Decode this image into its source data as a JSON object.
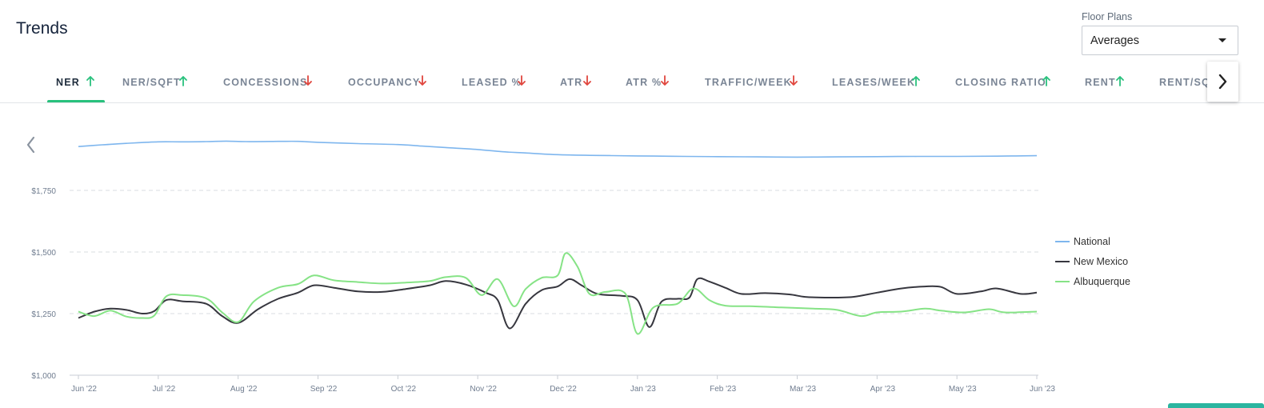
{
  "header": {
    "title": "Trends",
    "floor_plans": {
      "label": "Floor Plans",
      "selected": "Averages"
    }
  },
  "tabs": [
    {
      "label": "NER",
      "trend": "up",
      "active": true
    },
    {
      "label": "NER/SQFT",
      "trend": "up"
    },
    {
      "label": "CONCESSIONS",
      "trend": "down"
    },
    {
      "label": "OCCUPANCY",
      "trend": "down"
    },
    {
      "label": "LEASED %",
      "trend": "down"
    },
    {
      "label": "ATR",
      "trend": "down"
    },
    {
      "label": "ATR %",
      "trend": "down"
    },
    {
      "label": "TRAFFIC/WEEK",
      "trend": "down"
    },
    {
      "label": "LEASES/WEEK",
      "trend": "up"
    },
    {
      "label": "CLOSING RATIO",
      "trend": "up"
    },
    {
      "label": "RENT",
      "trend": "up"
    },
    {
      "label": "RENT/SQFT",
      "trend": "up"
    }
  ],
  "icons": {
    "scroll_left": "chevron-left-icon",
    "scroll_right": "chevron-right-icon",
    "dropdown": "caret-down-icon",
    "up": "arrow-up-icon",
    "down": "arrow-down-icon"
  },
  "colors": {
    "up": "#29c17d",
    "down": "#e0463e",
    "accent": "#29c17d",
    "grid": "#d9dde2",
    "axis_text": "#6f7c8f"
  },
  "chart_data": {
    "type": "line",
    "y_ticks": [
      "$1,000",
      "$1,250",
      "$1,500",
      "$1,750"
    ],
    "y_tick_values": [
      1000,
      1250,
      1500,
      1750
    ],
    "ylim": [
      1000,
      2000
    ],
    "x_ticks": [
      "Jun '22",
      "Jul '22",
      "Aug '22",
      "Sep '22",
      "Oct '22",
      "Nov '22",
      "Dec '22",
      "Jan '23",
      "Feb '23",
      "Mar '23",
      "Apr '23",
      "May '23",
      "Jun '23"
    ],
    "grid": "horizontal dashed",
    "legend_position": "right",
    "series": [
      {
        "name": "National",
        "color": "#7eb6ee",
        "points": [
          [
            0,
            1928
          ],
          [
            0.3,
            1935
          ],
          [
            0.6,
            1941
          ],
          [
            1,
            1947
          ],
          [
            1.3,
            1947
          ],
          [
            1.6,
            1948
          ],
          [
            1.85,
            1950
          ],
          [
            2.1,
            1948
          ],
          [
            2.5,
            1949
          ],
          [
            2.75,
            1949
          ],
          [
            3,
            1945
          ],
          [
            3.5,
            1940
          ],
          [
            4,
            1936
          ],
          [
            4.3,
            1930
          ],
          [
            4.6,
            1924
          ],
          [
            5,
            1916
          ],
          [
            5.3,
            1907
          ],
          [
            5.6,
            1902
          ],
          [
            6,
            1895
          ],
          [
            6.5,
            1892
          ],
          [
            7,
            1890
          ],
          [
            7.3,
            1889
          ],
          [
            7.6,
            1888
          ],
          [
            8,
            1887
          ],
          [
            8.5,
            1886
          ],
          [
            9,
            1885
          ],
          [
            9.5,
            1886
          ],
          [
            10,
            1887
          ],
          [
            10.5,
            1888
          ],
          [
            11,
            1888
          ],
          [
            11.5,
            1889
          ],
          [
            12,
            1891
          ]
        ]
      },
      {
        "name": "New Mexico",
        "color": "#37373f",
        "points": [
          [
            0,
            1232
          ],
          [
            0.2,
            1258
          ],
          [
            0.4,
            1270
          ],
          [
            0.6,
            1265
          ],
          [
            0.8,
            1250
          ],
          [
            0.95,
            1260
          ],
          [
            1.1,
            1305
          ],
          [
            1.3,
            1300
          ],
          [
            1.6,
            1290
          ],
          [
            1.8,
            1240
          ],
          [
            2,
            1212
          ],
          [
            2.25,
            1268
          ],
          [
            2.5,
            1310
          ],
          [
            2.75,
            1335
          ],
          [
            2.95,
            1365
          ],
          [
            3.2,
            1355
          ],
          [
            3.5,
            1340
          ],
          [
            3.8,
            1338
          ],
          [
            4.1,
            1350
          ],
          [
            4.4,
            1365
          ],
          [
            4.6,
            1382
          ],
          [
            4.85,
            1368
          ],
          [
            5.1,
            1335
          ],
          [
            5.25,
            1305
          ],
          [
            5.4,
            1190
          ],
          [
            5.6,
            1290
          ],
          [
            5.8,
            1345
          ],
          [
            6,
            1360
          ],
          [
            6.15,
            1390
          ],
          [
            6.3,
            1365
          ],
          [
            6.5,
            1330
          ],
          [
            6.8,
            1322
          ],
          [
            7,
            1305
          ],
          [
            7.15,
            1195
          ],
          [
            7.3,
            1298
          ],
          [
            7.5,
            1310
          ],
          [
            7.65,
            1315
          ],
          [
            7.75,
            1390
          ],
          [
            7.9,
            1380
          ],
          [
            8.1,
            1355
          ],
          [
            8.3,
            1330
          ],
          [
            8.6,
            1333
          ],
          [
            8.9,
            1328
          ],
          [
            9.1,
            1318
          ],
          [
            9.4,
            1315
          ],
          [
            9.7,
            1318
          ],
          [
            10,
            1335
          ],
          [
            10.3,
            1352
          ],
          [
            10.6,
            1360
          ],
          [
            10.8,
            1358
          ],
          [
            11,
            1330
          ],
          [
            11.3,
            1340
          ],
          [
            11.5,
            1352
          ],
          [
            11.8,
            1330
          ],
          [
            12,
            1335
          ]
        ]
      },
      {
        "name": "Albuquerque",
        "color": "#86e386",
        "points": [
          [
            0,
            1258
          ],
          [
            0.2,
            1240
          ],
          [
            0.4,
            1262
          ],
          [
            0.6,
            1238
          ],
          [
            0.8,
            1232
          ],
          [
            0.95,
            1242
          ],
          [
            1.1,
            1320
          ],
          [
            1.3,
            1325
          ],
          [
            1.6,
            1312
          ],
          [
            1.8,
            1255
          ],
          [
            2,
            1216
          ],
          [
            2.2,
            1300
          ],
          [
            2.5,
            1355
          ],
          [
            2.75,
            1370
          ],
          [
            2.95,
            1405
          ],
          [
            3.2,
            1385
          ],
          [
            3.5,
            1378
          ],
          [
            3.8,
            1372
          ],
          [
            4.1,
            1376
          ],
          [
            4.4,
            1382
          ],
          [
            4.6,
            1398
          ],
          [
            4.85,
            1395
          ],
          [
            5.05,
            1325
          ],
          [
            5.25,
            1390
          ],
          [
            5.45,
            1280
          ],
          [
            5.6,
            1350
          ],
          [
            5.8,
            1395
          ],
          [
            6,
            1405
          ],
          [
            6.1,
            1495
          ],
          [
            6.25,
            1440
          ],
          [
            6.4,
            1330
          ],
          [
            6.6,
            1338
          ],
          [
            6.85,
            1330
          ],
          [
            7,
            1168
          ],
          [
            7.2,
            1275
          ],
          [
            7.5,
            1290
          ],
          [
            7.7,
            1352
          ],
          [
            7.9,
            1305
          ],
          [
            8.1,
            1282
          ],
          [
            8.4,
            1280
          ],
          [
            8.8,
            1275
          ],
          [
            9.2,
            1270
          ],
          [
            9.5,
            1265
          ],
          [
            9.8,
            1240
          ],
          [
            10,
            1255
          ],
          [
            10.3,
            1258
          ],
          [
            10.6,
            1270
          ],
          [
            10.8,
            1262
          ],
          [
            11.1,
            1255
          ],
          [
            11.4,
            1268
          ],
          [
            11.6,
            1255
          ],
          [
            12,
            1258
          ]
        ]
      }
    ]
  }
}
